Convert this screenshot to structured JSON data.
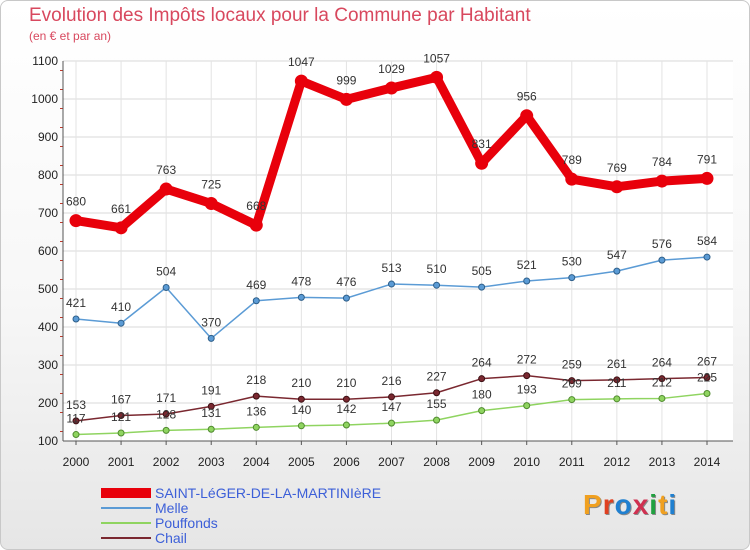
{
  "header": {
    "title": "Evolution des Impôts locaux pour la Commune par Habitant",
    "subtitle": "(en € et par an)"
  },
  "logo": {
    "text": "Proxiti",
    "letter_colors": [
      "#f0a020",
      "#e04020",
      "#2080d0",
      "#d03050",
      "#20a040",
      "#f0a020",
      "#2080d0"
    ]
  },
  "chart_data": {
    "type": "line",
    "title": "Evolution des Impôts locaux pour la Commune par Habitant",
    "subtitle": "(en € et par an)",
    "xlabel": "",
    "ylabel": "",
    "x": [
      "2000",
      "2001",
      "2002",
      "2003",
      "2004",
      "2005",
      "2006",
      "2007",
      "2008",
      "2009",
      "2010",
      "2011",
      "2012",
      "2013",
      "2014"
    ],
    "ylim": [
      100,
      1100
    ],
    "yticks": [
      100,
      200,
      300,
      400,
      500,
      600,
      700,
      800,
      900,
      1000,
      1100
    ],
    "grid": true,
    "legend_position": "bottom-left",
    "series": [
      {
        "name": "SAINT-LéGER-DE-LA-MARTINIèRE",
        "color": "#e8000b",
        "values": [
          680,
          661,
          763,
          725,
          668,
          1047,
          999,
          1029,
          1057,
          831,
          956,
          789,
          769,
          784,
          791
        ],
        "labels": [
          "680",
          "661",
          "763",
          "725",
          "668",
          "1047",
          "999",
          "1029",
          "1057",
          "831",
          "956",
          "789",
          "769",
          "784",
          "791"
        ]
      },
      {
        "name": "Melle",
        "color": "#5b9bd5",
        "values": [
          421,
          410,
          504,
          370,
          469,
          478,
          476,
          513,
          510,
          505,
          521,
          530,
          547,
          576,
          584
        ],
        "labels": [
          "421",
          "410",
          "504",
          "370",
          "469",
          "478",
          "476",
          "513",
          "510",
          "505",
          "521",
          "530",
          "547",
          "576",
          "584"
        ]
      },
      {
        "name": "Pouffonds",
        "color": "#8fd460",
        "values": [
          117,
          121,
          128,
          131,
          136,
          140,
          142,
          147,
          155,
          180,
          193,
          209,
          211,
          212,
          225
        ],
        "labels": [
          "117",
          "121",
          "128",
          "131",
          "136",
          "140",
          "142",
          "147",
          "155",
          "180",
          "193",
          "209",
          "211",
          "212",
          "225"
        ]
      },
      {
        "name": "Chail",
        "color": "#7a2830",
        "values": [
          153,
          167,
          171,
          191,
          218,
          210,
          210,
          216,
          227,
          264,
          272,
          259,
          261,
          264,
          267
        ],
        "labels": [
          "153",
          "167",
          "171",
          "191",
          "218",
          "210",
          "210",
          "216",
          "227",
          "264",
          "272",
          "259",
          "261",
          "264",
          "267"
        ]
      }
    ]
  }
}
